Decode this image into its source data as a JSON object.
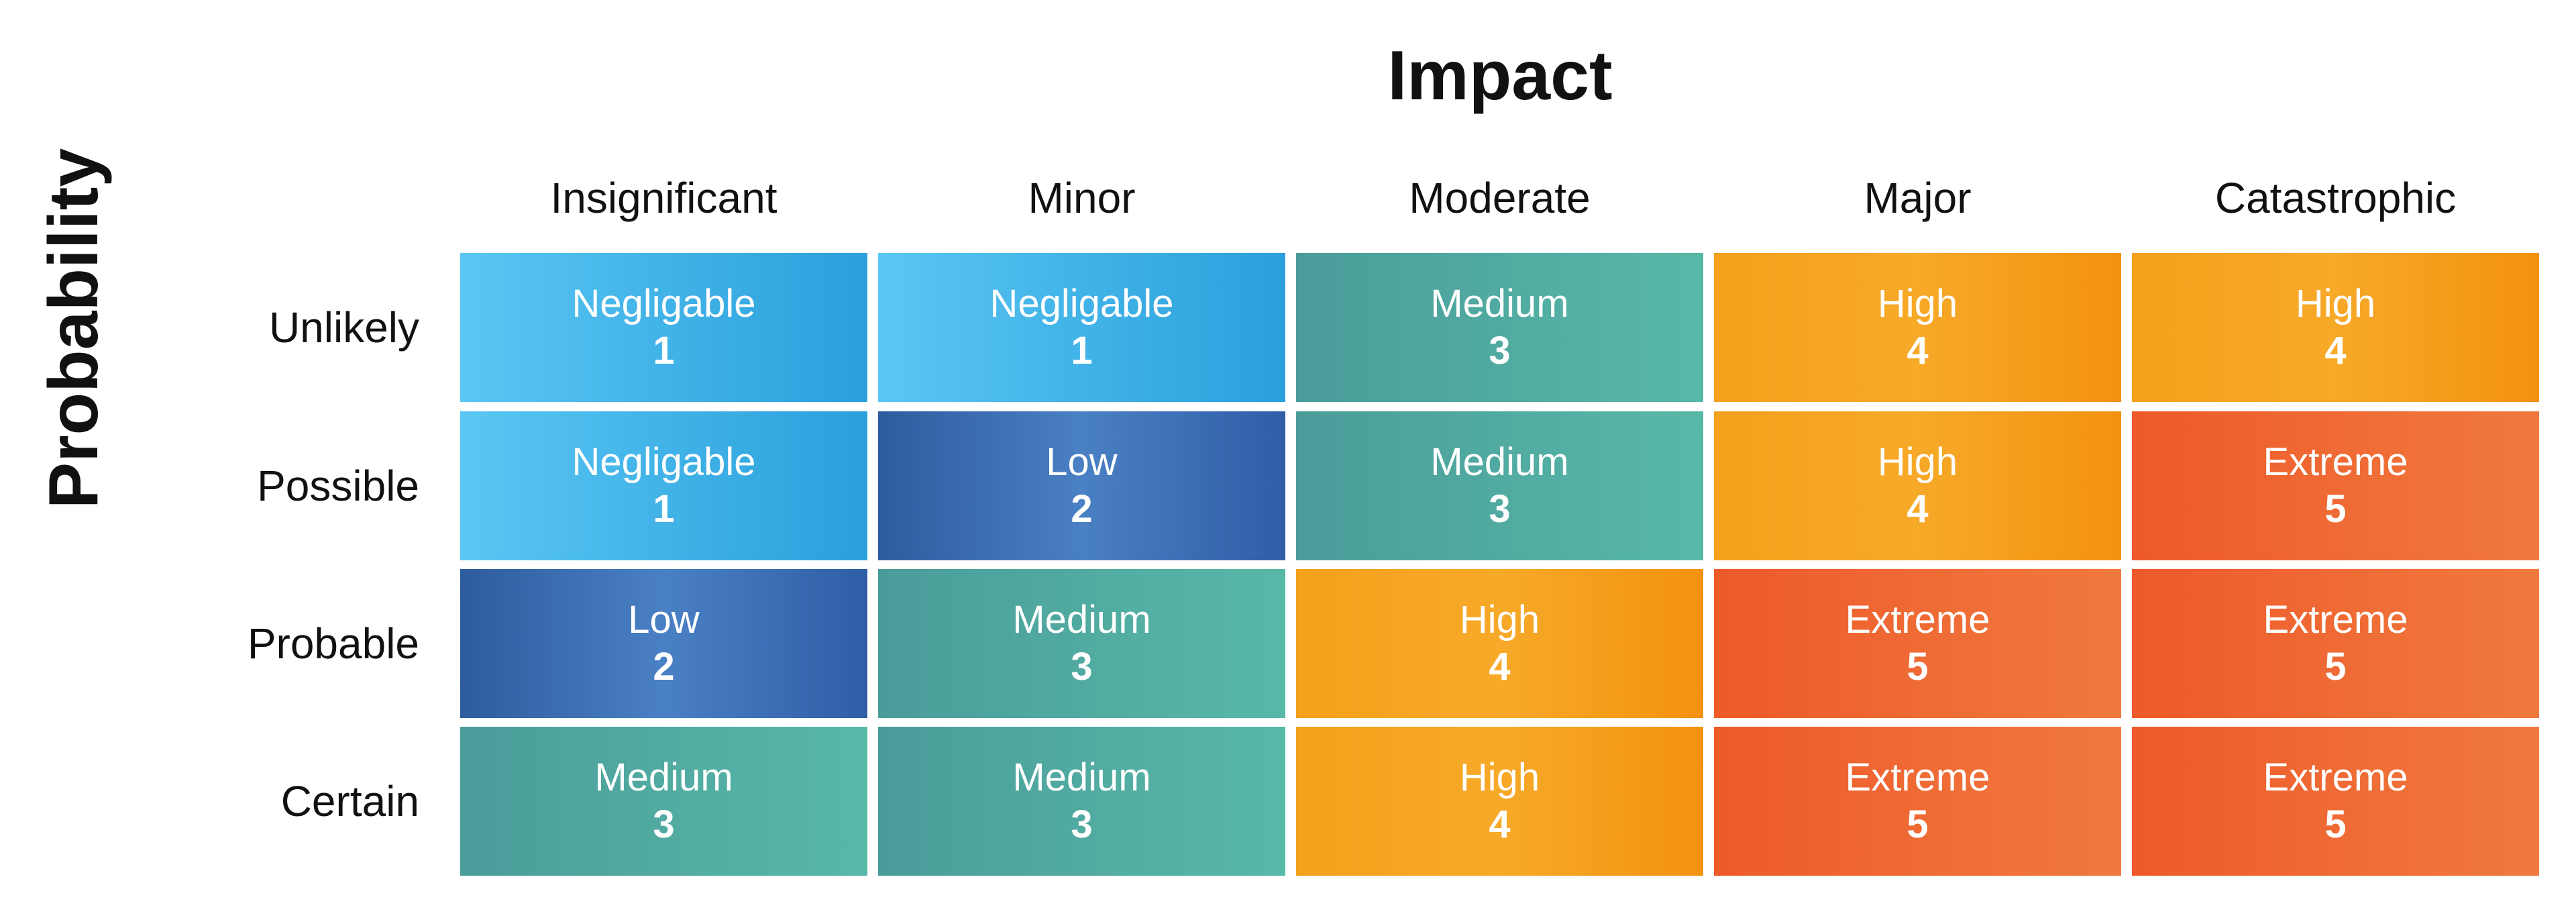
{
  "x_axis_title": "Impact",
  "y_axis_title": "Probability",
  "columns": [
    "Insignificant",
    "Minor",
    "Moderate",
    "Major",
    "Catastrophic"
  ],
  "rows": [
    "Unlikely",
    "Possible",
    "Probable",
    "Certain"
  ],
  "level_colors": {
    "Negligable": "#2a9fdc",
    "Low": "#2f5ea6",
    "Medium": "#52ad9f",
    "High": "#f5a11c",
    "Extreme": "#ef6a34"
  },
  "cells": [
    [
      {
        "label": "Negligable",
        "score": "1"
      },
      {
        "label": "Negligable",
        "score": "1"
      },
      {
        "label": "Medium",
        "score": "3"
      },
      {
        "label": "High",
        "score": "4"
      },
      {
        "label": "High",
        "score": "4"
      }
    ],
    [
      {
        "label": "Negligable",
        "score": "1"
      },
      {
        "label": "Low",
        "score": "2"
      },
      {
        "label": "Medium",
        "score": "3"
      },
      {
        "label": "High",
        "score": "4"
      },
      {
        "label": "Extreme",
        "score": "5"
      }
    ],
    [
      {
        "label": "Low",
        "score": "2"
      },
      {
        "label": "Medium",
        "score": "3"
      },
      {
        "label": "High",
        "score": "4"
      },
      {
        "label": "Extreme",
        "score": "5"
      },
      {
        "label": "Extreme",
        "score": "5"
      }
    ],
    [
      {
        "label": "Medium",
        "score": "3"
      },
      {
        "label": "Medium",
        "score": "3"
      },
      {
        "label": "High",
        "score": "4"
      },
      {
        "label": "Extreme",
        "score": "5"
      },
      {
        "label": "Extreme",
        "score": "5"
      }
    ]
  ]
}
